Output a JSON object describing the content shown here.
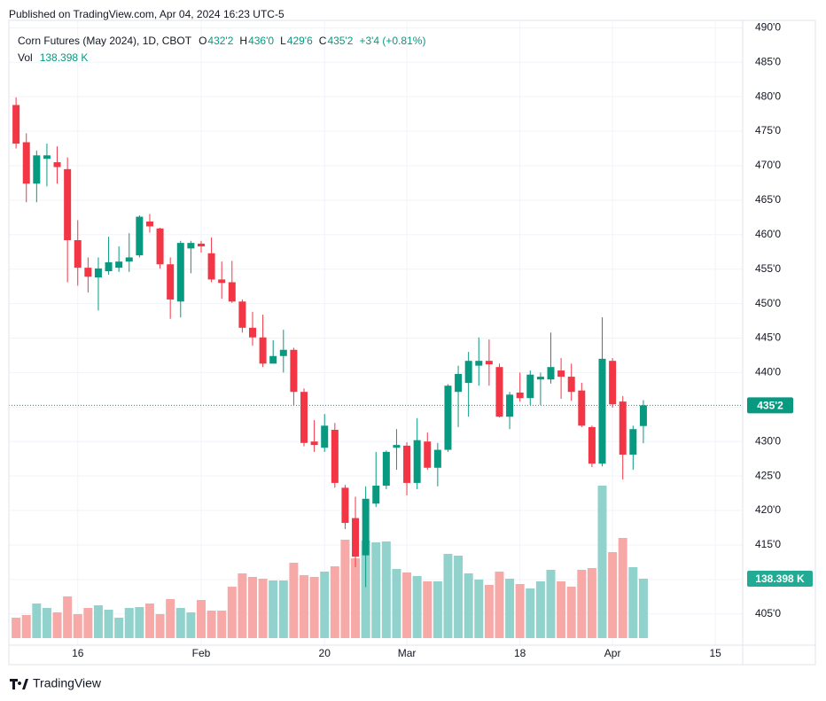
{
  "header": {
    "published": "Published on TradingView.com, Apr 04, 2024 16:23 UTC-5"
  },
  "footer": {
    "brand": "TradingView"
  },
  "chart_data": {
    "type": "candlestick",
    "title": "Corn Futures (May 2024), 1D, CBOT",
    "legend": {
      "o": "O",
      "open": "432'2",
      "h": "H",
      "high": "436'0",
      "l": "L",
      "low": "429'6",
      "c": "C",
      "close": "435'2",
      "change": "+3'4 (+0.81%)",
      "vol": "Vol",
      "volume": "138.398 K"
    },
    "open": [
      478.8,
      473.4,
      467.4,
      471.0,
      470.5,
      469.5,
      459.2,
      455.2,
      453.8,
      454.7,
      455.2,
      456.1,
      457.0,
      461.9,
      460.9,
      455.7,
      450.3,
      458.0,
      458.7,
      457.3,
      453.5,
      453.1,
      450.3,
      446.5,
      445.1,
      441.3,
      442.4,
      443.3,
      437.2,
      430.0,
      429.1,
      431.7,
      423.3,
      418.9,
      413.5,
      421.0,
      423.6,
      429.1,
      429.4,
      424.0,
      430.0,
      426.2,
      428.8,
      437.2,
      438.5,
      441.0,
      441.7,
      440.8,
      433.6,
      437.1,
      436.3,
      439.0,
      439.0,
      440.3,
      439.4,
      437.4,
      432.1,
      426.8,
      441.7,
      435.8,
      428.1,
      432.25
    ],
    "high": [
      479.9,
      474.7,
      472.2,
      473.2,
      472.8,
      471.2,
      462.1,
      456.7,
      456.7,
      459.7,
      458.3,
      460.2,
      462.8,
      463.0,
      461.0,
      456.7,
      459.1,
      459.1,
      459.1,
      459.6,
      456.1,
      456.2,
      450.6,
      448.8,
      448.4,
      444.7,
      446.2,
      443.6,
      437.7,
      433.1,
      434.0,
      432.7,
      423.7,
      422.0,
      423.5,
      428.5,
      428.7,
      431.8,
      429.9,
      433.4,
      431.3,
      429.8,
      438.3,
      441.0,
      443.0,
      445.1,
      444.8,
      441.3,
      437.2,
      440.0,
      440.3,
      440.0,
      445.8,
      442.1,
      441.3,
      438.5,
      432.3,
      448.0,
      442.1,
      436.6,
      432.3,
      436.0
    ],
    "low": [
      472.5,
      464.7,
      464.7,
      467.0,
      467.4,
      453.1,
      452.6,
      451.6,
      449.0,
      454.2,
      454.6,
      454.6,
      456.7,
      460.3,
      455.1,
      447.8,
      448.0,
      454.4,
      457.4,
      453.1,
      450.7,
      450.1,
      445.8,
      443.9,
      440.8,
      441.3,
      440.0,
      435.2,
      429.3,
      428.5,
      428.5,
      423.3,
      417.3,
      411.8,
      408.9,
      420.5,
      423.1,
      425.9,
      422.2,
      423.1,
      425.9,
      423.5,
      428.5,
      432.1,
      433.6,
      438.1,
      438.1,
      433.5,
      431.8,
      435.8,
      435.3,
      435.3,
      438.4,
      436.2,
      435.9,
      432.1,
      426.3,
      426.4,
      434.9,
      424.5,
      425.9,
      429.75
    ],
    "close": [
      473.2,
      467.4,
      471.5,
      471.5,
      469.8,
      459.2,
      455.2,
      453.9,
      455.1,
      456.0,
      456.1,
      456.7,
      462.6,
      461.2,
      455.7,
      450.6,
      458.8,
      458.8,
      458.3,
      453.5,
      453.0,
      450.3,
      446.5,
      445.1,
      441.3,
      442.4,
      443.3,
      437.2,
      429.8,
      429.5,
      432.3,
      424.0,
      418.2,
      413.3,
      421.7,
      423.6,
      428.5,
      429.5,
      424.0,
      430.2,
      426.2,
      428.8,
      438.1,
      439.8,
      441.7,
      441.7,
      441.2,
      433.6,
      436.8,
      436.3,
      439.7,
      439.4,
      440.8,
      439.4,
      437.2,
      432.3,
      426.8,
      442.0,
      435.4,
      428.1,
      431.8,
      435.25
    ],
    "volume": [
      47.5,
      53.7,
      80.6,
      70.2,
      59.9,
      97.1,
      55.8,
      70.2,
      76.4,
      66.1,
      47.5,
      70.2,
      72.3,
      80.6,
      55.8,
      90.9,
      70.2,
      59.9,
      88.8,
      64.0,
      64.0,
      119.8,
      150.8,
      142.6,
      138.4,
      134.3,
      134.3,
      175.6,
      146.7,
      142.6,
      155.0,
      167.3,
      229.3,
      185.9,
      227.3,
      223.1,
      225.2,
      161.1,
      152.9,
      144.6,
      132.2,
      132.2,
      196.3,
      192.1,
      150.8,
      136.4,
      124.0,
      155.0,
      138.4,
      126.0,
      115.7,
      132.2,
      159.1,
      132.2,
      119.8,
      159.1,
      163.2,
      355.4,
      200.4,
      233.5,
      165.3,
      138.398
    ],
    "up_color": "#089981",
    "down_color": "#f23645",
    "up_volume_color": "#92d2cc",
    "down_volume_color": "#f7a9a7",
    "xlim": [
      -0.7,
      70.4
    ],
    "xticks": [
      {
        "value": 6,
        "label": "16"
      },
      {
        "value": 18,
        "label": "Feb"
      },
      {
        "value": 30,
        "label": "20"
      },
      {
        "value": 38,
        "label": "Mar"
      },
      {
        "value": 49,
        "label": "18"
      },
      {
        "value": 58,
        "label": "Apr"
      },
      {
        "value": 68,
        "label": "15"
      }
    ],
    "ylim": [
      400.6,
      491.2
    ],
    "yticks": [
      {
        "value": 405,
        "label": "405'0"
      },
      {
        "value": 410,
        "label": "410'0"
      },
      {
        "value": 415,
        "label": "415'0"
      },
      {
        "value": 420,
        "label": "420'0"
      },
      {
        "value": 425,
        "label": "425'0"
      },
      {
        "value": 430,
        "label": "430'0"
      },
      {
        "value": 435,
        "label": "435'0"
      },
      {
        "value": 440,
        "label": "440'0"
      },
      {
        "value": 445,
        "label": "445'0"
      },
      {
        "value": 450,
        "label": "450'0"
      },
      {
        "value": 455,
        "label": "455'0"
      },
      {
        "value": 460,
        "label": "460'0"
      },
      {
        "value": 465,
        "label": "465'0"
      },
      {
        "value": 470,
        "label": "470'0"
      },
      {
        "value": 475,
        "label": "475'0"
      },
      {
        "value": 480,
        "label": "480'0"
      },
      {
        "value": 485,
        "label": "485'0"
      },
      {
        "value": 490,
        "label": "490'0"
      }
    ],
    "volume_ylim": [
      0,
      1442
    ],
    "grid": true,
    "last_price_line": true
  }
}
